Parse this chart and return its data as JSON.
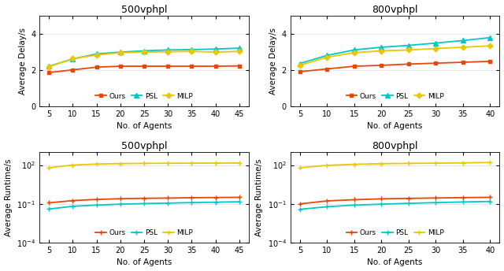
{
  "delay_500_x": [
    5,
    10,
    15,
    20,
    25,
    30,
    35,
    40,
    45
  ],
  "delay_500_ours": [
    1.85,
    2.0,
    2.15,
    2.2,
    2.2,
    2.2,
    2.2,
    2.2,
    2.22
  ],
  "delay_500_psl": [
    2.2,
    2.6,
    2.88,
    2.98,
    3.05,
    3.1,
    3.12,
    3.15,
    3.2
  ],
  "delay_500_milp": [
    2.18,
    2.62,
    2.82,
    2.95,
    2.98,
    3.0,
    3.02,
    2.98,
    3.02
  ],
  "delay_800_x": [
    5,
    10,
    15,
    20,
    25,
    30,
    35,
    40
  ],
  "delay_800_ours": [
    1.9,
    2.05,
    2.2,
    2.25,
    2.32,
    2.37,
    2.42,
    2.47
  ],
  "delay_800_psl": [
    2.35,
    2.8,
    3.1,
    3.25,
    3.35,
    3.48,
    3.62,
    3.78
  ],
  "delay_800_milp": [
    2.25,
    2.7,
    2.95,
    3.05,
    3.1,
    3.18,
    3.25,
    3.33
  ],
  "runtime_500_x": [
    5,
    10,
    15,
    20,
    25,
    30,
    35,
    40,
    45
  ],
  "runtime_500_ours": [
    0.12,
    0.18,
    0.22,
    0.25,
    0.27,
    0.28,
    0.3,
    0.31,
    0.32
  ],
  "runtime_500_psl": [
    0.04,
    0.065,
    0.08,
    0.095,
    0.105,
    0.115,
    0.125,
    0.135,
    0.145
  ],
  "runtime_500_milp": [
    62,
    100,
    120,
    130,
    135,
    138,
    140,
    142,
    143
  ],
  "runtime_800_x": [
    5,
    10,
    15,
    20,
    25,
    30,
    35,
    40
  ],
  "runtime_800_ours": [
    0.1,
    0.17,
    0.21,
    0.245,
    0.265,
    0.285,
    0.305,
    0.32
  ],
  "runtime_800_psl": [
    0.038,
    0.06,
    0.08,
    0.095,
    0.11,
    0.125,
    0.14,
    0.155
  ],
  "runtime_800_milp": [
    62,
    95,
    115,
    128,
    135,
    140,
    148,
    158
  ],
  "color_ours": "#E8470A",
  "color_psl": "#00C8C8",
  "color_milp": "#E8C800",
  "title_500": "500vphpl",
  "title_800": "800vphpl",
  "xlabel": "No. of Agents",
  "ylabel_delay": "Average Delay/s",
  "ylabel_runtime": "Average Runtime/s",
  "delay_ylim": [
    0,
    5
  ],
  "delay_yticks": [
    0,
    2,
    4
  ],
  "figsize": [
    6.4,
    3.44
  ],
  "dpi": 100,
  "marker_square": "s",
  "marker_tri": "^",
  "marker_diamond": "D",
  "marker_cross": "+"
}
